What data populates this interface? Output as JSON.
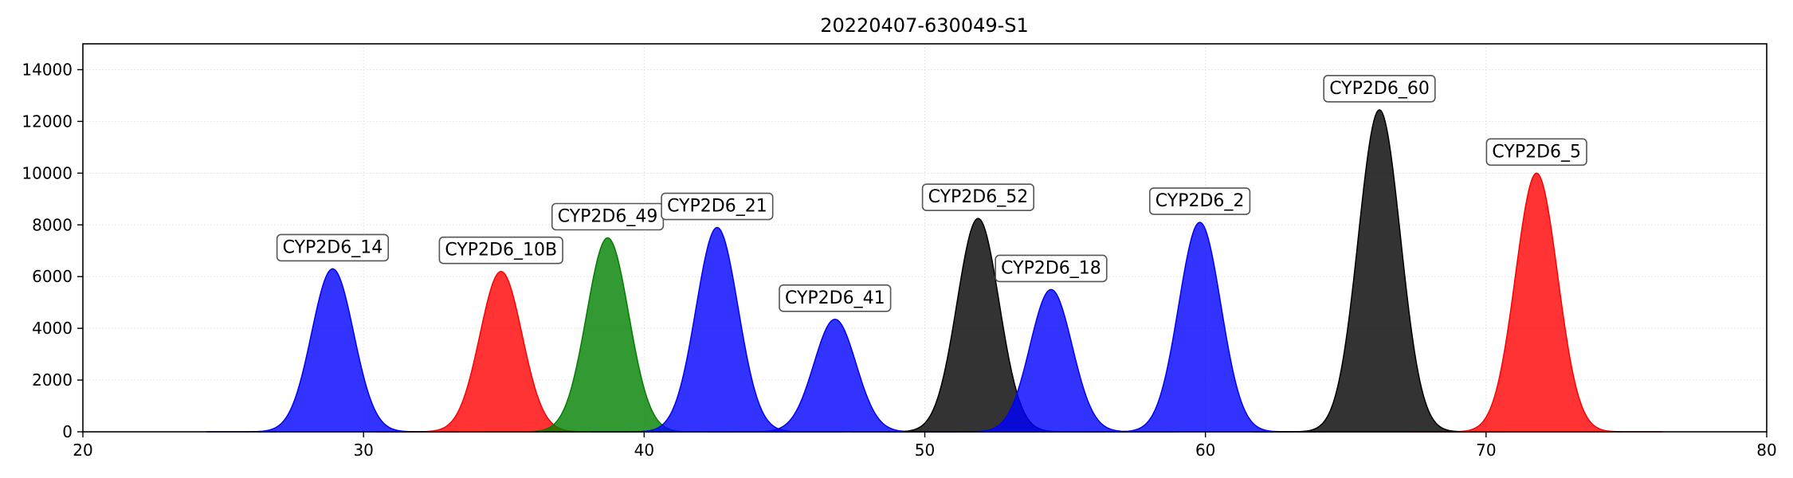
{
  "chart_data": {
    "type": "area",
    "title": "20220407-630049-S1",
    "xlabel": "",
    "ylabel": "",
    "xlim": [
      20,
      80
    ],
    "ylim": [
      0,
      15000
    ],
    "xticks": [
      20,
      30,
      40,
      50,
      60,
      70,
      80
    ],
    "yticks": [
      0,
      2000,
      4000,
      6000,
      8000,
      10000,
      12000,
      14000
    ],
    "grid": true,
    "peaks": [
      {
        "name": "CYP2D6_14",
        "center": 28.9,
        "height": 6300,
        "color": "#0000ff"
      },
      {
        "name": "CYP2D6_10B",
        "center": 34.9,
        "height": 6200,
        "color": "#ff0000"
      },
      {
        "name": "CYP2D6_49",
        "center": 38.7,
        "height": 7500,
        "color": "#007f00"
      },
      {
        "name": "CYP2D6_21",
        "center": 42.6,
        "height": 7900,
        "color": "#0000ff"
      },
      {
        "name": "CYP2D6_41",
        "center": 46.8,
        "height": 4350,
        "color": "#0000ff"
      },
      {
        "name": "CYP2D6_52",
        "center": 51.9,
        "height": 8250,
        "color": "#000000"
      },
      {
        "name": "CYP2D6_18",
        "center": 54.5,
        "height": 5500,
        "color": "#0000ff"
      },
      {
        "name": "CYP2D6_2",
        "center": 59.8,
        "height": 8100,
        "color": "#0000ff"
      },
      {
        "name": "CYP2D6_60",
        "center": 66.2,
        "height": 12450,
        "color": "#000000"
      },
      {
        "name": "CYP2D6_5",
        "center": 71.8,
        "height": 10000,
        "color": "#ff0000"
      }
    ]
  }
}
